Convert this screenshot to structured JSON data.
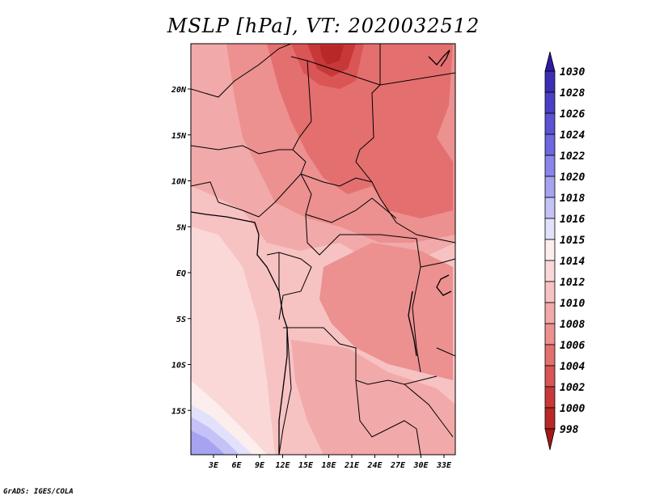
{
  "title": "MSLP [hPa], VT: 2020032512",
  "credit": "GrADS: IGES/COLA",
  "map": {
    "lat_labels": [
      "20N",
      "15N",
      "10N",
      "5N",
      "EQ",
      "5S",
      "10S",
      "15S"
    ],
    "lon_labels": [
      "3E",
      "6E",
      "9E",
      "12E",
      "15E",
      "18E",
      "21E",
      "24E",
      "27E",
      "30E",
      "33E"
    ],
    "lon_range_deg": [
      0,
      35
    ],
    "lat_range_deg": [
      -20,
      24.5
    ]
  },
  "colorbar": {
    "labels": [
      "1030",
      "1028",
      "1026",
      "1024",
      "1022",
      "1020",
      "1018",
      "1016",
      "1015",
      "1014",
      "1012",
      "1010",
      "1008",
      "1006",
      "1004",
      "1002",
      "1000",
      "998"
    ],
    "colors": [
      "#2f1aa0",
      "#3b2db4",
      "#4a3fc4",
      "#5b52d4",
      "#6d67e0",
      "#8a85ea",
      "#a6a3f0",
      "#c4c2f6",
      "#e2e1fb",
      "#fdeeee",
      "#fbd8d8",
      "#f7c2c2",
      "#f2a9a9",
      "#ec9090",
      "#e46f6f",
      "#da5555",
      "#c83838",
      "#b82828",
      "#a31818"
    ]
  }
}
